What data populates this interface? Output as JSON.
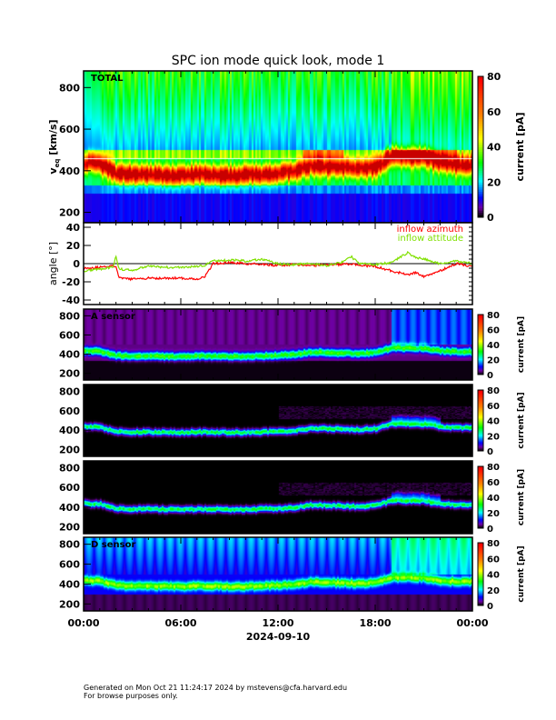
{
  "title": "SPC ion mode quick look, mode 1",
  "chart_data": [
    {
      "type": "heatmap",
      "panel": "total",
      "label": "TOTAL",
      "ylabel_main": "v",
      "ylabel_sub": "eq",
      "ylabel_unit": "[km/s]",
      "ylim": [
        150,
        880
      ],
      "yticks": [
        "200",
        "400",
        "600",
        "800"
      ],
      "ytick_values": [
        200,
        400,
        600,
        800
      ],
      "colorbar": {
        "label": "current [pA]",
        "range": [
          0,
          80
        ],
        "ticks": [
          "0",
          "20",
          "40",
          "60",
          "80"
        ],
        "tick_values": [
          0,
          20,
          40,
          60,
          80
        ]
      },
      "peak_speed_by_hour": [
        440,
        435,
        390,
        385,
        385,
        380,
        380,
        385,
        385,
        380,
        380,
        385,
        390,
        400,
        425,
        420,
        415,
        410,
        420,
        470,
        470,
        465,
        440,
        430,
        430
      ],
      "peak_current": 65
    },
    {
      "type": "line",
      "panel": "angle",
      "ylabel": "angle [°]",
      "ylim": [
        -45,
        45
      ],
      "yticks": [
        "-40",
        "-20",
        "0",
        "20",
        "40"
      ],
      "ytick_values": [
        -40,
        -20,
        0,
        20,
        40
      ],
      "x_hours": [
        0,
        1,
        1.8,
        2,
        2.2,
        3,
        4,
        5,
        6,
        7,
        7.5,
        8,
        9,
        10,
        11,
        12,
        13,
        14,
        15,
        16,
        16.5,
        17,
        18,
        19,
        20,
        20.5,
        21,
        22,
        23,
        24
      ],
      "series": [
        {
          "name": "inflow azimuth",
          "color": "#ff0000",
          "values": [
            -5,
            -4,
            -2,
            -3,
            -16,
            -17,
            -16,
            -16,
            -16,
            -17,
            -14,
            0,
            1,
            0,
            -1,
            -2,
            -1,
            -2,
            -1,
            -1,
            0,
            -2,
            -3,
            -8,
            -12,
            -10,
            -14,
            -8,
            0,
            -3
          ]
        },
        {
          "name": "inflow attitude",
          "color": "#80e000",
          "values": [
            -8,
            -6,
            -4,
            8,
            -6,
            -7,
            -3,
            -4,
            -4,
            -3,
            -2,
            3,
            4,
            3,
            5,
            0,
            -1,
            0,
            -2,
            2,
            8,
            0,
            -1,
            1,
            12,
            7,
            5,
            0,
            3,
            0
          ]
        }
      ]
    },
    {
      "type": "heatmap",
      "panel": "a",
      "label": "A sensor",
      "ylim": [
        130,
        870
      ],
      "yticks": [
        "200",
        "400",
        "600",
        "800"
      ],
      "ytick_values": [
        200,
        400,
        600,
        800
      ],
      "colorbar": {
        "label": "current [pA]",
        "ticks": [
          "0",
          "20",
          "40",
          "60",
          "80"
        ],
        "tick_values": [
          0,
          20,
          40,
          60,
          80
        ]
      }
    },
    {
      "type": "heatmap",
      "panel": "b",
      "label": "",
      "ylim": [
        130,
        870
      ],
      "yticks": [
        "200",
        "400",
        "600",
        "800"
      ],
      "ytick_values": [
        200,
        400,
        600,
        800
      ],
      "colorbar": {
        "label": "current [pA]",
        "ticks": [
          "0",
          "20",
          "40",
          "60",
          "80"
        ],
        "tick_values": [
          0,
          20,
          40,
          60,
          80
        ]
      }
    },
    {
      "type": "heatmap",
      "panel": "c",
      "label": "",
      "ylim": [
        130,
        870
      ],
      "yticks": [
        "200",
        "400",
        "600",
        "800"
      ],
      "ytick_values": [
        200,
        400,
        600,
        800
      ],
      "colorbar": {
        "label": "current [pA]",
        "ticks": [
          "0",
          "20",
          "40",
          "60",
          "80"
        ],
        "tick_values": [
          0,
          20,
          40,
          60,
          80
        ]
      }
    },
    {
      "type": "heatmap",
      "panel": "d",
      "label": "D sensor",
      "ylim": [
        130,
        870
      ],
      "yticks": [
        "200",
        "400",
        "600",
        "800"
      ],
      "ytick_values": [
        200,
        400,
        600,
        800
      ],
      "colorbar": {
        "label": "current [pA]",
        "ticks": [
          "0",
          "20",
          "40",
          "60",
          "80"
        ],
        "tick_values": [
          0,
          20,
          40,
          60,
          80
        ]
      }
    }
  ],
  "xaxis": {
    "ticks": [
      "00:00",
      "06:00",
      "12:00",
      "18:00",
      "00:00"
    ],
    "tick_hours": [
      0,
      6,
      12,
      18,
      24
    ],
    "date": "2024-09-10"
  },
  "footer": {
    "line1": "Generated on Mon Oct 21 11:24:17 2024 by mstevens@cfa.harvard.edu",
    "line2": "For browse purposes only."
  }
}
